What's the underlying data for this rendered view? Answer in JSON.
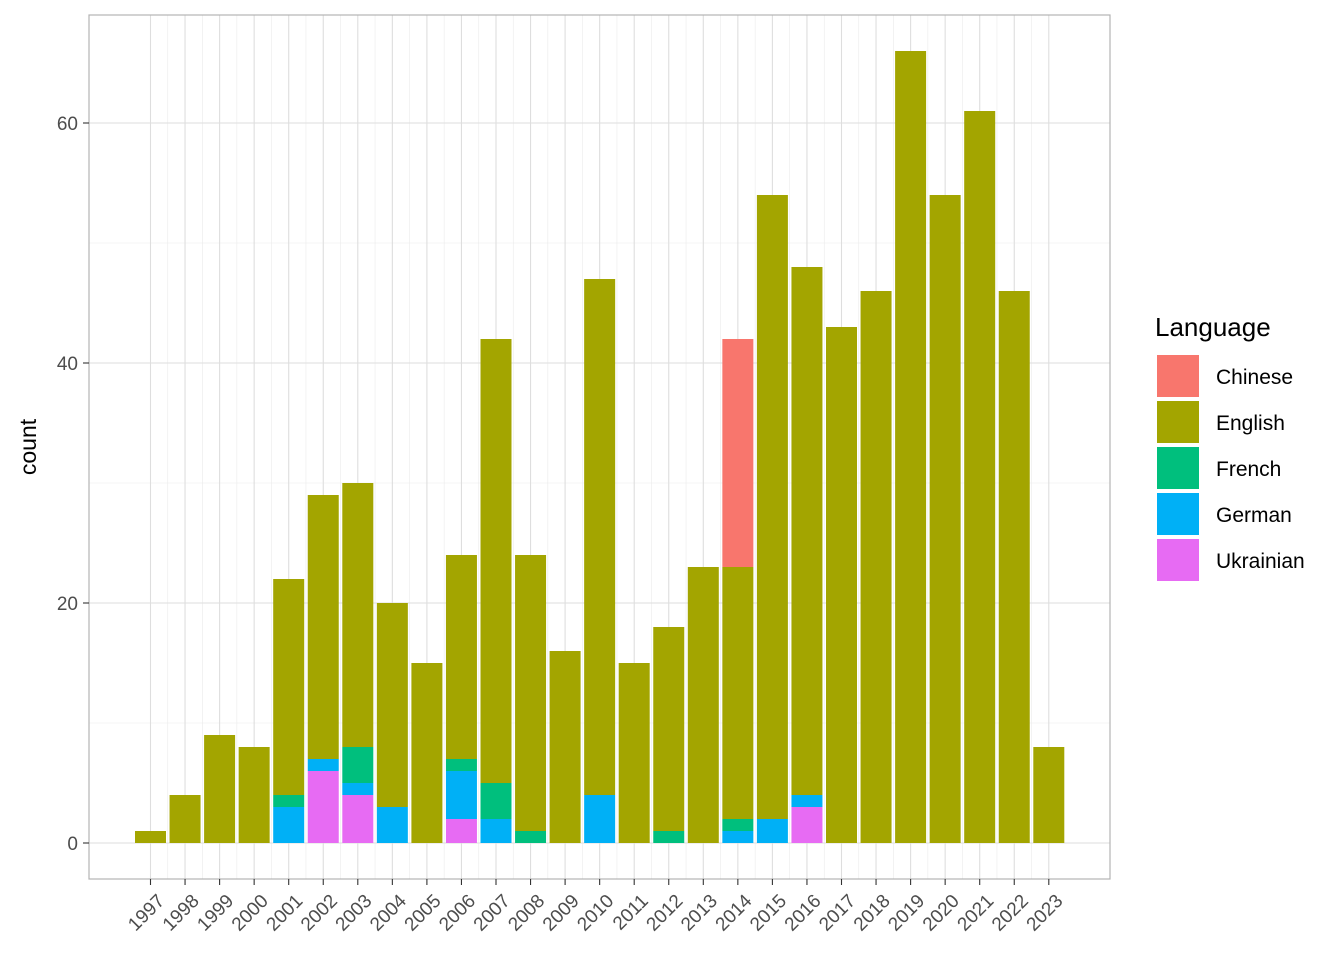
{
  "chart_data": {
    "type": "bar",
    "stacked": true,
    "title": "",
    "xlabel": "",
    "ylabel": "count",
    "ylim": [
      -3,
      69
    ],
    "y_ticks": [
      0,
      20,
      40,
      60
    ],
    "grid": true,
    "legend_title": "Language",
    "legend_position": "right",
    "categories": [
      "1997",
      "1998",
      "1999",
      "2000",
      "2001",
      "2002",
      "2003",
      "2004",
      "2005",
      "2006",
      "2007",
      "2008",
      "2009",
      "2010",
      "2011",
      "2012",
      "2013",
      "2014",
      "2015",
      "2016",
      "2017",
      "2018",
      "2019",
      "2020",
      "2021",
      "2022",
      "2023"
    ],
    "series": [
      {
        "name": "Chinese",
        "color": "#F8766D",
        "values": [
          0,
          0,
          0,
          0,
          0,
          0,
          0,
          0,
          0,
          0,
          0,
          0,
          0,
          0,
          0,
          0,
          0,
          19,
          0,
          0,
          0,
          0,
          0,
          0,
          0,
          0,
          0
        ]
      },
      {
        "name": "English",
        "color": "#A3A500",
        "values": [
          1,
          4,
          9,
          8,
          18,
          22,
          22,
          17,
          15,
          17,
          37,
          23,
          16,
          43,
          15,
          17,
          23,
          21,
          52,
          44,
          43,
          46,
          66,
          54,
          61,
          46,
          8
        ]
      },
      {
        "name": "French",
        "color": "#00BF7D",
        "values": [
          0,
          0,
          0,
          0,
          1,
          0,
          3,
          0,
          0,
          1,
          3,
          1,
          0,
          0,
          0,
          1,
          0,
          1,
          0,
          0,
          0,
          0,
          0,
          0,
          0,
          0,
          0
        ]
      },
      {
        "name": "German",
        "color": "#00B0F6",
        "values": [
          0,
          0,
          0,
          0,
          3,
          1,
          1,
          3,
          0,
          4,
          2,
          0,
          0,
          4,
          0,
          0,
          0,
          1,
          2,
          1,
          0,
          0,
          0,
          0,
          0,
          0,
          0
        ]
      },
      {
        "name": "Ukrainian",
        "color": "#E76BF3",
        "values": [
          0,
          0,
          0,
          0,
          0,
          6,
          4,
          0,
          0,
          2,
          0,
          0,
          0,
          0,
          0,
          0,
          0,
          0,
          0,
          3,
          0,
          0,
          0,
          0,
          0,
          0,
          0
        ]
      }
    ]
  }
}
